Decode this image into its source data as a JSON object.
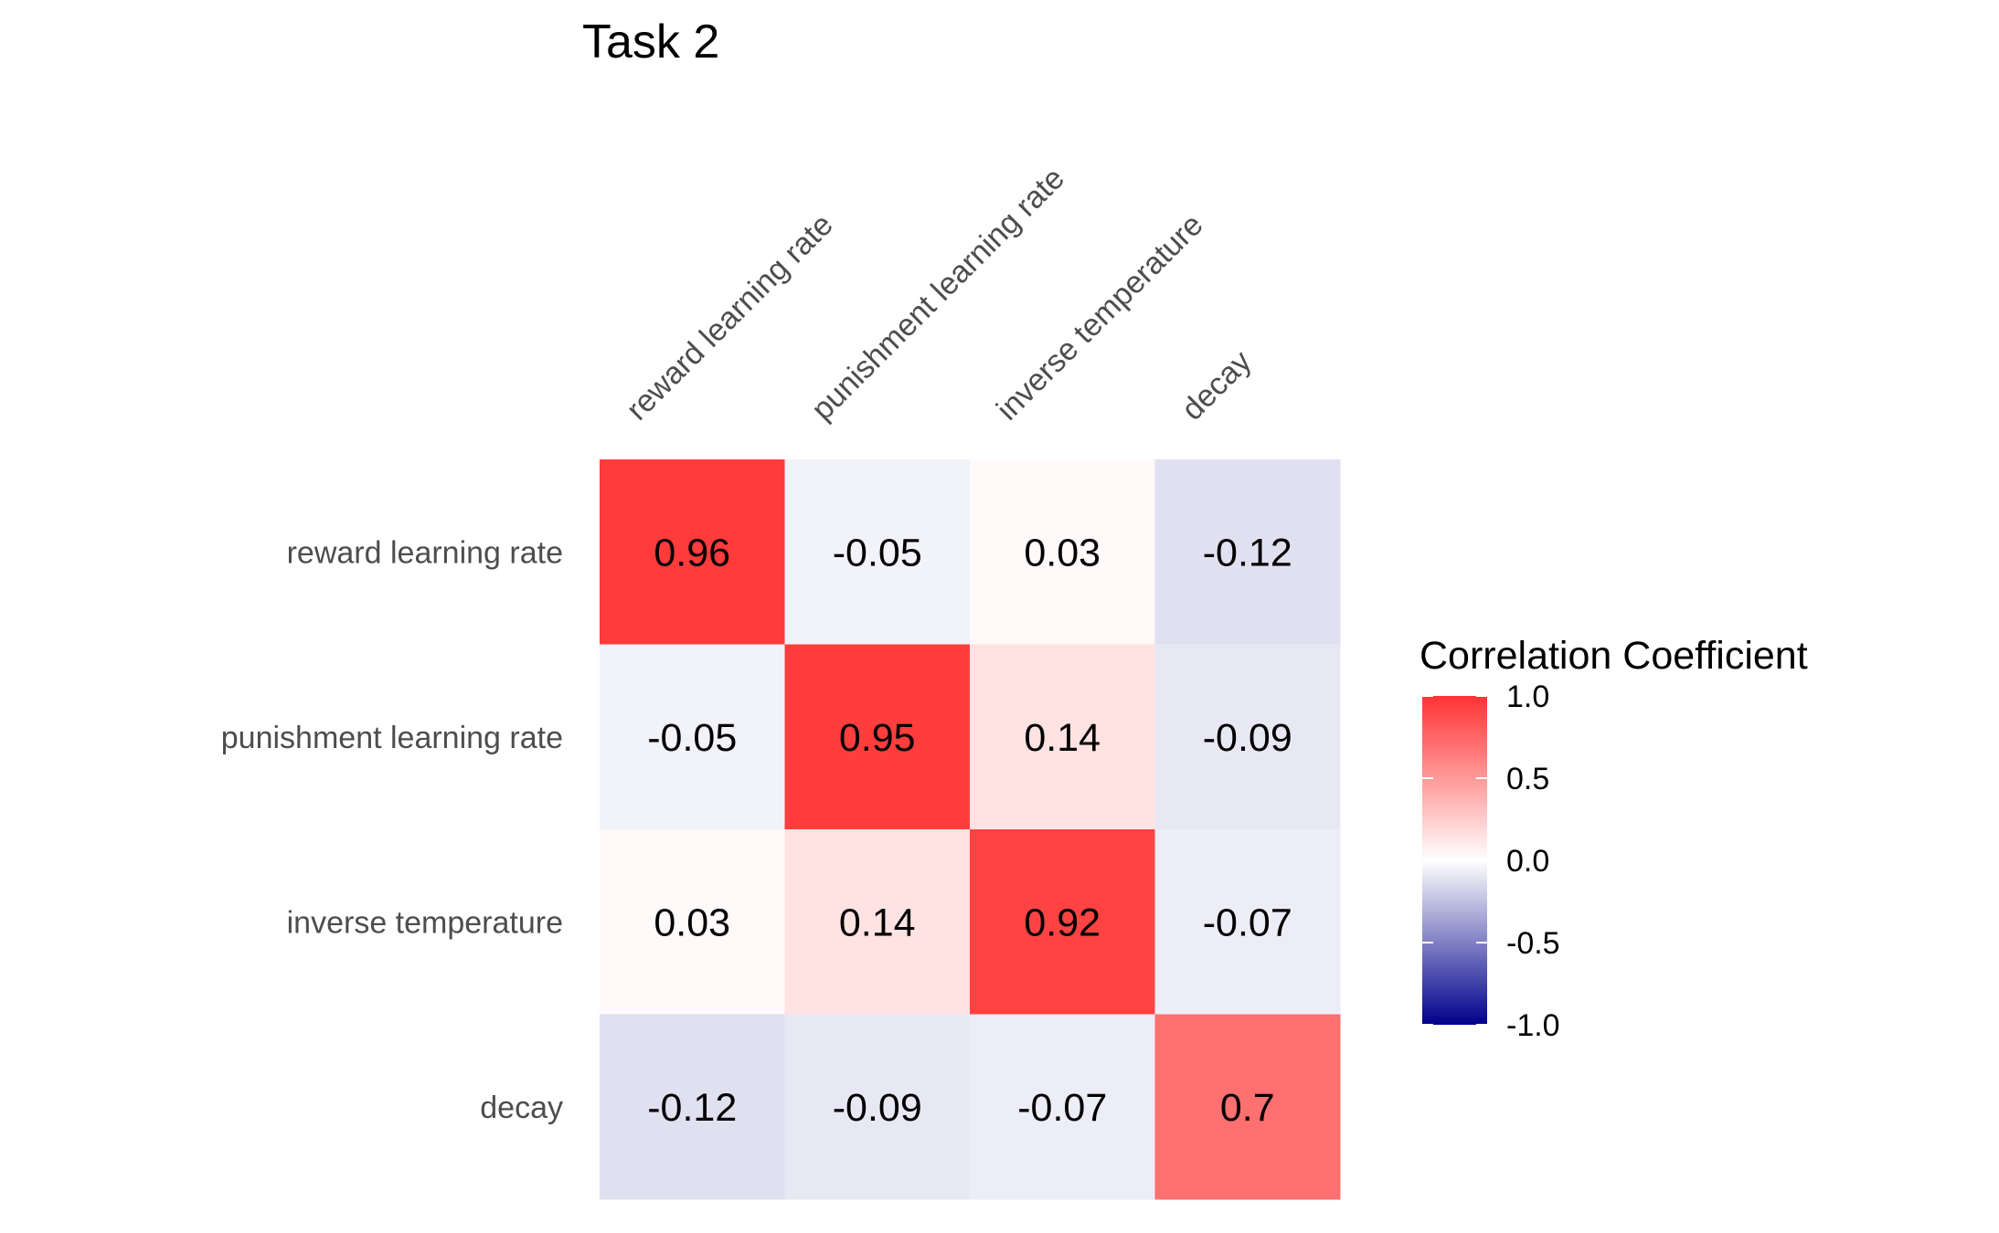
{
  "chart_data": {
    "type": "heatmap",
    "title": "Task 2",
    "row_labels": [
      "reward learning rate",
      "punishment learning rate",
      "inverse temperature",
      "decay"
    ],
    "col_labels": [
      "reward learning rate",
      "punishment learning rate",
      "inverse temperature",
      "decay"
    ],
    "values": [
      [
        0.96,
        -0.05,
        0.03,
        -0.12
      ],
      [
        -0.05,
        0.95,
        0.14,
        -0.09
      ],
      [
        0.03,
        0.14,
        0.92,
        -0.07
      ],
      [
        -0.12,
        -0.09,
        -0.07,
        0.7
      ]
    ],
    "cell_labels": [
      [
        "0.96",
        "-0.05",
        "0.03",
        "-0.12"
      ],
      [
        "-0.05",
        "0.95",
        "0.14",
        "-0.09"
      ],
      [
        "0.03",
        "0.14",
        "0.92",
        "-0.07"
      ],
      [
        "-0.12",
        "-0.09",
        "-0.07",
        "0.7"
      ]
    ],
    "legend": {
      "title": "Correlation Coefficient",
      "range": [
        -1,
        1
      ],
      "ticks": [
        1.0,
        0.5,
        0.0,
        -0.5,
        -1.0
      ],
      "tick_labels": [
        "1.0",
        "0.5",
        "0.0",
        "-0.5",
        "-1.0"
      ],
      "placement": "right"
    },
    "colors": {
      "low": "#00008b",
      "mid": "#ffffff",
      "high": "#ff3333"
    },
    "grid": false
  }
}
